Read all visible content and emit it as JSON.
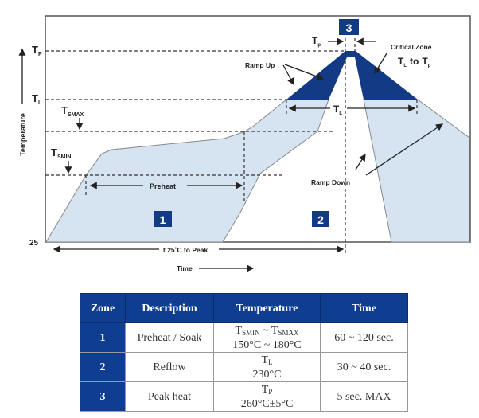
{
  "diagram": {
    "y_axis_label": "Temperature",
    "x_axis_label": "Time",
    "levels": {
      "tp": "T",
      "tp_sub": "P",
      "tl": "T",
      "tl_sub": "L",
      "tsmax": "T",
      "tsmax_sub": "SMAX",
      "tsmin": "T",
      "tsmin_sub": "SMIN",
      "base": "25"
    },
    "zones": [
      "1",
      "2",
      "3"
    ],
    "preheat_label": "Preheat",
    "ramp_up_label": "Ramp Up",
    "ramp_down_label": "Ramp Down",
    "critical_zone_label": "Critical Zone",
    "critical_zone_range": {
      "t1": "T",
      "t1_sub": "L",
      "to": "to",
      "t2": "T",
      "t2_sub": "p"
    },
    "tl_duration_label": {
      "t": "T",
      "sub": "L"
    },
    "tp_duration_label": {
      "t": "T",
      "sub": "p"
    },
    "time_to_peak_label": "t 25˚C to Peak",
    "colors": {
      "zone_fill": "#d6e4f2",
      "critical_fill": "#123a85",
      "badge": "#123a85"
    }
  },
  "table": {
    "headers": [
      "Zone",
      "Description",
      "Temperature",
      "Time"
    ],
    "rows": [
      {
        "zone": "1",
        "description": "Preheat / Soak",
        "temp_symbol_a": "T",
        "temp_sub_a": "SMIN",
        "temp_sep": " ~ ",
        "temp_symbol_b": "T",
        "temp_sub_b": "SMAX",
        "temp_value": "150°C ~ 180°C",
        "time": "60 ~ 120 sec."
      },
      {
        "zone": "2",
        "description": "Reflow",
        "temp_symbol_a": "T",
        "temp_sub_a": "L",
        "temp_value": "230°C",
        "time": "30 ~ 40 sec."
      },
      {
        "zone": "3",
        "description": "Peak heat",
        "temp_symbol_a": "T",
        "temp_sub_a": "P",
        "temp_value": "260°C±5°C",
        "time": "5 sec. MAX"
      }
    ]
  }
}
